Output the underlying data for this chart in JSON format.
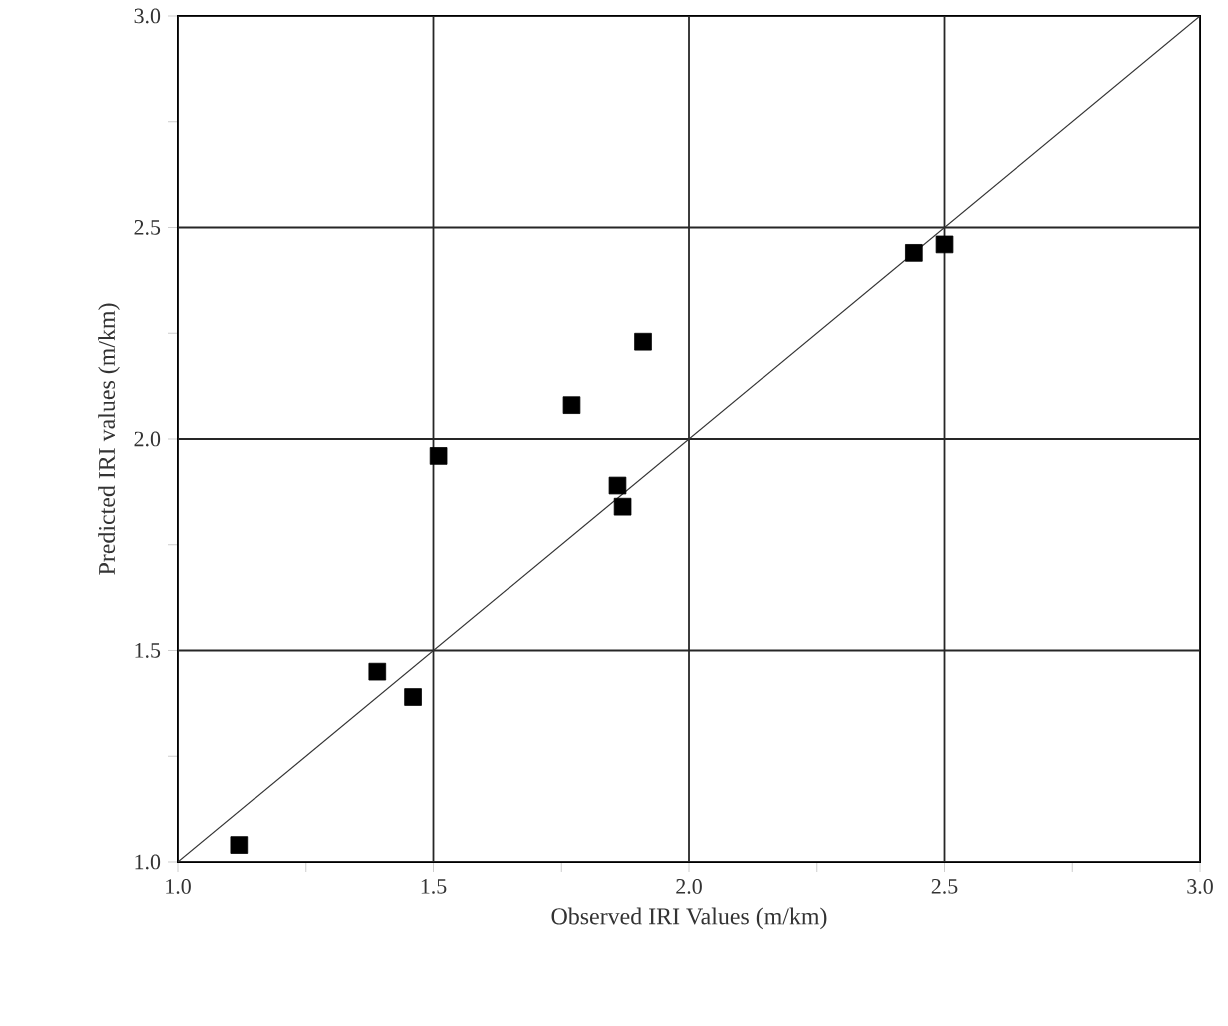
{
  "chart_data": {
    "type": "scatter",
    "xlabel": "Observed IRI Values (m/km)",
    "ylabel": "Predicted IRI values (m/km)",
    "xlim": [
      1.0,
      3.0
    ],
    "ylim": [
      1.0,
      3.0
    ],
    "xticks": [
      {
        "value": 1.0,
        "label": "1.0"
      },
      {
        "value": 1.25,
        "label": null
      },
      {
        "value": 1.5,
        "label": "1.5"
      },
      {
        "value": 1.75,
        "label": null
      },
      {
        "value": 2.0,
        "label": "2.0"
      },
      {
        "value": 2.25,
        "label": null
      },
      {
        "value": 2.5,
        "label": "2.5"
      },
      {
        "value": 2.75,
        "label": null
      },
      {
        "value": 3.0,
        "label": "3.0"
      }
    ],
    "yticks": [
      {
        "value": 1.0,
        "label": "1.0"
      },
      {
        "value": 1.25,
        "label": null
      },
      {
        "value": 1.5,
        "label": "1.5"
      },
      {
        "value": 1.75,
        "label": null
      },
      {
        "value": 2.0,
        "label": "2.0"
      },
      {
        "value": 2.25,
        "label": null
      },
      {
        "value": 2.5,
        "label": "2.5"
      },
      {
        "value": 2.75,
        "label": null
      },
      {
        "value": 3.0,
        "label": "3.0"
      }
    ],
    "grid": true,
    "series": [
      {
        "color": "#000000",
        "marker": "square",
        "x": [
          1.12,
          1.39,
          1.46,
          1.51,
          1.77,
          1.86,
          1.87,
          1.91,
          2.44,
          2.5
        ],
        "values": [
          1.04,
          1.45,
          1.39,
          1.96,
          2.08,
          1.89,
          1.84,
          2.23,
          2.44,
          2.46
        ]
      },
      {
        "type": "line",
        "color": "#333333",
        "marker": "none",
        "line_style": "solid",
        "x": [
          1.0,
          3.0
        ],
        "values": [
          1.0,
          3.0
        ]
      }
    ]
  }
}
